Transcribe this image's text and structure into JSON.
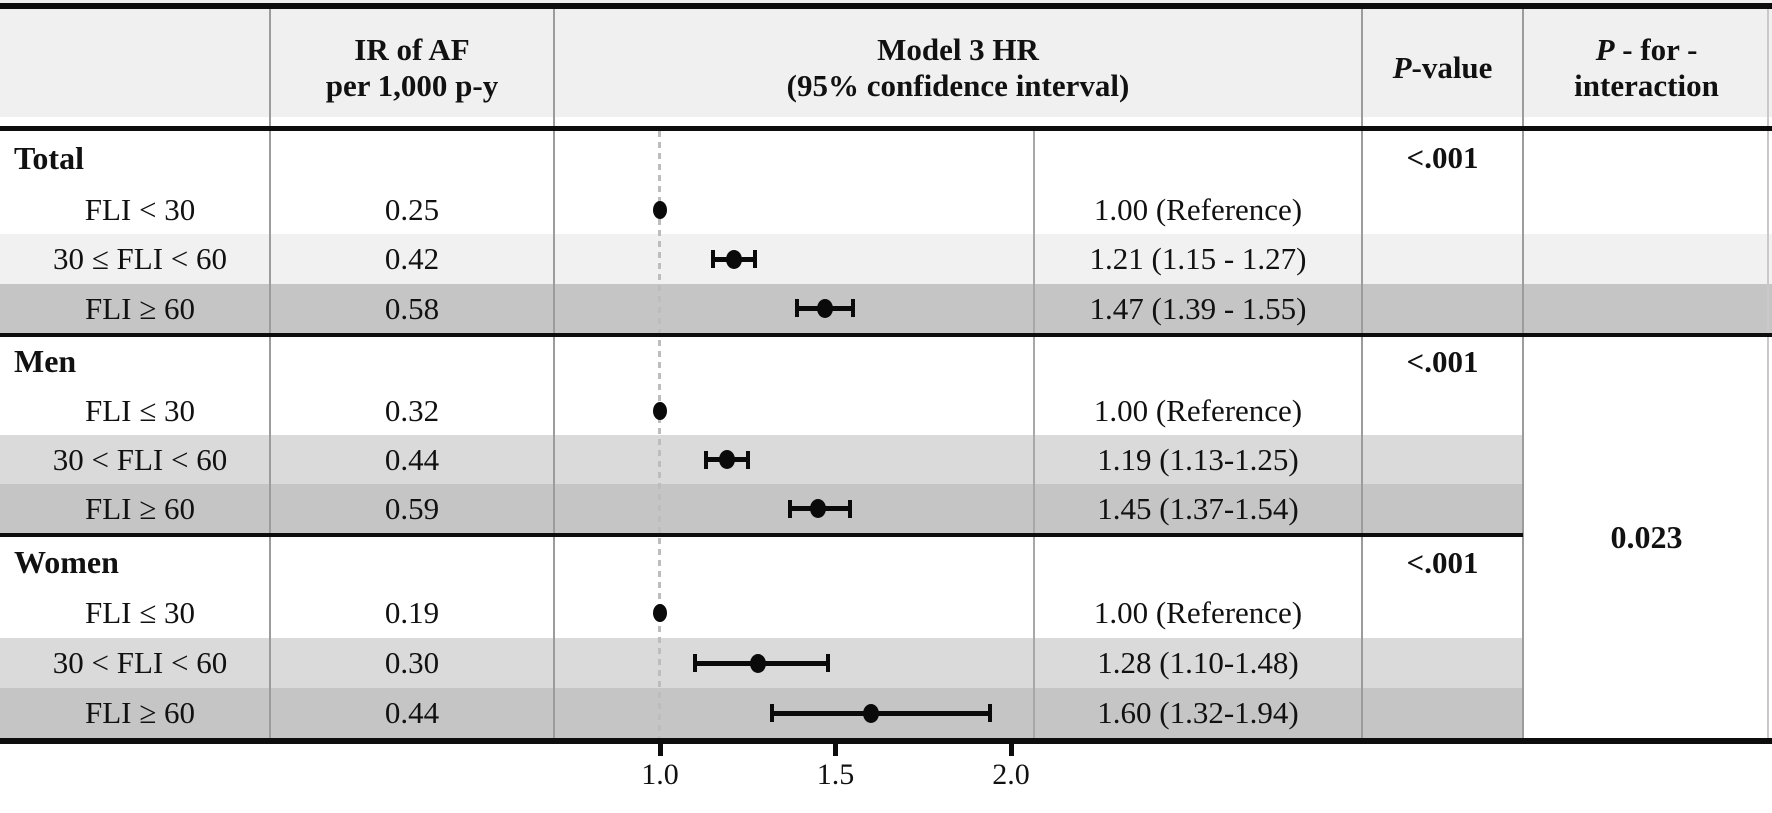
{
  "figure": {
    "headers": {
      "ir_line1": "IR of AF",
      "ir_line2": "per 1,000 p-y",
      "model_line1": "Model 3 HR",
      "model_line2": "(95% confidence interval)",
      "p_value_italic": "P",
      "p_value_rest": "-value",
      "p_int_italic": "P",
      "p_int_rest": " - for -",
      "p_int_line2": "interaction"
    }
  },
  "chart_data": {
    "type": "forest",
    "title": "Model 3 HR (95% confidence interval) for AF by FLI category",
    "x_axis": {
      "scale": "linear",
      "ticks": [
        1.0,
        1.5,
        2.0
      ],
      "tick_labels": [
        "1.0",
        "1.5",
        "2.0"
      ],
      "range_hint": [
        0.72,
        2.07
      ],
      "reference_line": 1.0,
      "grid": false
    },
    "columns": [
      "",
      "IR of AF per 1,000 p-y",
      "Model 3 HR (95% confidence interval)",
      "P-value",
      "P - for - interaction"
    ],
    "sections": [
      {
        "group": "Total",
        "p_value": "<.001",
        "rows": [
          {
            "label": "FLI < 30",
            "ir": "0.25",
            "hr": 1.0,
            "ci_low": null,
            "ci_high": null,
            "hr_text": "1.00 (Reference)",
            "shade": "white"
          },
          {
            "label": "30 ≤ FLI < 60",
            "ir": "0.42",
            "hr": 1.21,
            "ci_low": 1.15,
            "ci_high": 1.27,
            "hr_text": "1.21 (1.15 - 1.27)",
            "shade": "light"
          },
          {
            "label": "FLI ≥ 60",
            "ir": "0.58",
            "hr": 1.47,
            "ci_low": 1.39,
            "ci_high": 1.55,
            "hr_text": "1.47 (1.39 - 1.55)",
            "shade": "dark"
          }
        ]
      },
      {
        "group": "Men",
        "p_value": "<.001",
        "rows": [
          {
            "label": "FLI ≤ 30",
            "ir": "0.32",
            "hr": 1.0,
            "ci_low": null,
            "ci_high": null,
            "hr_text": "1.00 (Reference)",
            "shade": "white"
          },
          {
            "label": "30 < FLI < 60",
            "ir": "0.44",
            "hr": 1.19,
            "ci_low": 1.13,
            "ci_high": 1.25,
            "hr_text": "1.19 (1.13-1.25)",
            "shade": "light"
          },
          {
            "label": "FLI ≥ 60",
            "ir": "0.59",
            "hr": 1.45,
            "ci_low": 1.37,
            "ci_high": 1.54,
            "hr_text": "1.45 (1.37-1.54)",
            "shade": "dark"
          }
        ]
      },
      {
        "group": "Women",
        "p_value": "<.001",
        "rows": [
          {
            "label": "FLI ≤ 30",
            "ir": "0.19",
            "hr": 1.0,
            "ci_low": null,
            "ci_high": null,
            "hr_text": "1.00 (Reference)",
            "shade": "white"
          },
          {
            "label": "30 < FLI < 60",
            "ir": "0.30",
            "hr": 1.28,
            "ci_low": 1.1,
            "ci_high": 1.48,
            "hr_text": "1.28 (1.10-1.48)",
            "shade": "light"
          },
          {
            "label": "FLI ≥ 60",
            "ir": "0.44",
            "hr": 1.6,
            "ci_low": 1.32,
            "ci_high": 1.94,
            "hr_text": "1.60 (1.32-1.94)",
            "shade": "dark"
          }
        ]
      }
    ],
    "p_for_interaction": "0.023",
    "colors": {
      "header_bg": "#f0f0f0",
      "stripe_light_total": "#f1f1f1",
      "stripe_light": "#dadada",
      "stripe_dark": "#c5c5c5",
      "marker": "#0a0a0a",
      "reference_dashes": "#bdbdbd",
      "divider": "#9c9c9c",
      "rule": "#0d0d0d"
    }
  }
}
